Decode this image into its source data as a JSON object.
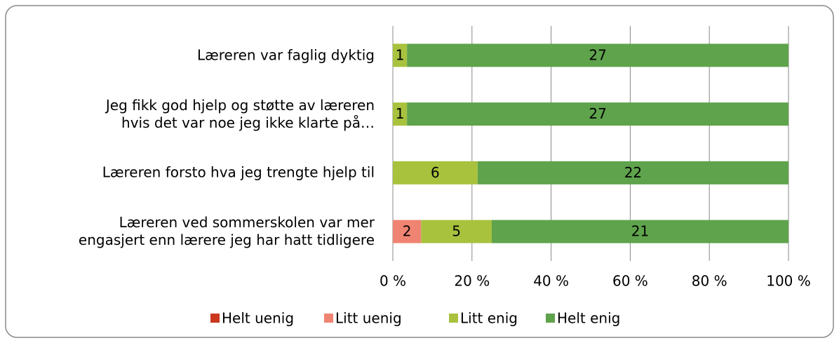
{
  "chart_data": {
    "type": "stacked-bar-100",
    "categories": [
      "Læreren var faglig dyktig",
      "Jeg fikk god hjelp og støtte av læreren\nhvis det var noe jeg ikke klarte på…",
      "Læreren forsto hva jeg trengte hjelp til",
      "Læreren ved sommerskolen var mer\nengasjert enn lærere jeg har hatt tidligere"
    ],
    "series": [
      {
        "name": "Helt uenig",
        "color": "#c9381f",
        "values": [
          0,
          0,
          0,
          0
        ]
      },
      {
        "name": "Litt uenig",
        "color": "#f08472",
        "values": [
          0,
          0,
          0,
          2
        ]
      },
      {
        "name": "Litt enig",
        "color": "#a8c23e",
        "values": [
          1,
          1,
          6,
          5
        ]
      },
      {
        "name": "Helt enig",
        "color": "#5fa34c",
        "values": [
          27,
          27,
          22,
          21
        ]
      }
    ],
    "xlim": [
      0,
      100
    ],
    "xticks": [
      {
        "value": 0,
        "label": "0 %"
      },
      {
        "value": 20,
        "label": "20 %"
      },
      {
        "value": 40,
        "label": "40 %"
      },
      {
        "value": 60,
        "label": "60 %"
      },
      {
        "value": 80,
        "label": "80 %"
      },
      {
        "value": 100,
        "label": "100 %"
      }
    ],
    "grid": true,
    "legend": "bottom"
  }
}
